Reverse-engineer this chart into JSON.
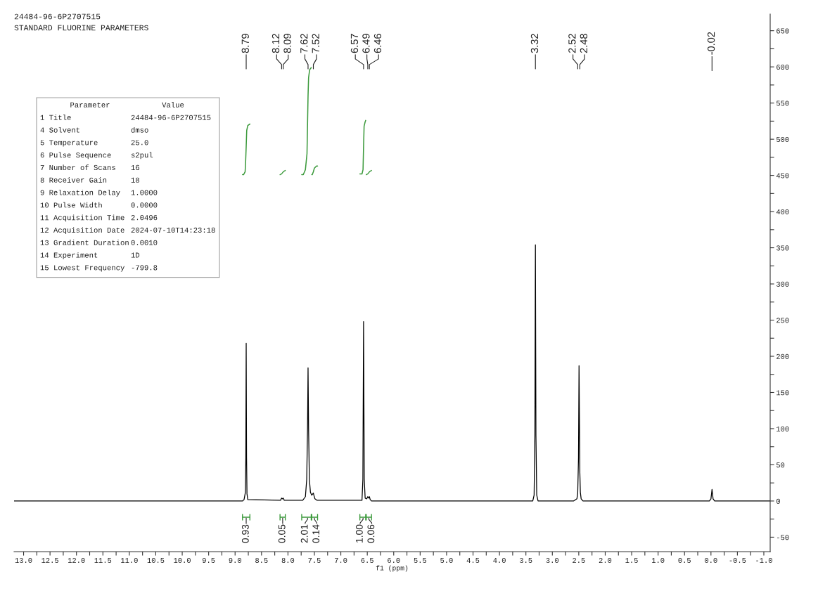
{
  "chart_data": {
    "type": "line",
    "title": "24484-96-6P2707515",
    "subtitle": "STANDARD FLUORINE PARAMETERS",
    "xlabel": "f1 (ppm)",
    "xlim": [
      13.18,
      -1.12
    ],
    "xticks": [
      {
        "value": 13,
        "label": "13.0"
      },
      12.5,
      {
        "value": 12,
        "label": "12.0"
      },
      11.5,
      {
        "value": 11,
        "label": "11.0"
      },
      10.5,
      {
        "value": 10,
        "label": "10.0"
      },
      9.5,
      {
        "value": 9,
        "label": "9.0"
      },
      8.5,
      {
        "value": 8,
        "label": "8.0"
      },
      7.5,
      {
        "value": 7,
        "label": "7.0"
      },
      6.5,
      {
        "value": 6,
        "label": "6.0"
      },
      5.5,
      {
        "value": 5,
        "label": "5.0"
      },
      4.5,
      {
        "value": 4,
        "label": "4.0"
      },
      3.5,
      {
        "value": 3,
        "label": "3.0"
      },
      2.5,
      {
        "value": 2,
        "label": "2.0"
      },
      1.5,
      {
        "value": 1,
        "label": "1.0"
      },
      0.5,
      {
        "value": 0,
        "label": "0.0"
      },
      -0.5,
      {
        "value": -1,
        "label": "-1.0"
      }
    ],
    "ylim": [
      -70,
      673
    ],
    "yticks": [
      -50,
      0,
      50,
      100,
      150,
      200,
      250,
      300,
      350,
      400,
      450,
      500,
      550,
      600,
      650
    ],
    "series": [
      {
        "color": "#000000",
        "x": [
          13.18,
          8.86,
          8.83,
          8.815,
          8.805,
          8.797,
          8.79,
          8.783,
          8.775,
          8.76,
          8.14,
          8.12,
          8.105,
          8.09,
          8.07,
          7.72,
          7.67,
          7.645,
          7.63,
          7.62,
          7.61,
          7.595,
          7.575,
          7.55,
          7.52,
          7.51,
          7.49,
          7.45,
          6.6,
          6.583,
          6.57,
          6.557,
          6.54,
          6.51,
          6.49,
          6.475,
          6.46,
          6.445,
          6.42,
          3.37,
          3.345,
          3.33,
          3.32,
          3.31,
          3.295,
          3.27,
          2.6,
          2.535,
          2.52,
          2.505,
          2.495,
          2.48,
          2.47,
          2.455,
          2.42,
          0.03,
          0.0,
          -0.02,
          -0.04,
          -0.07,
          -1.12
        ],
        "values": [
          0,
          0,
          2,
          8,
          12,
          60,
          218,
          60,
          10,
          2,
          1,
          4,
          3,
          4,
          1,
          1,
          6,
          30,
          100,
          184,
          100,
          30,
          12,
          8,
          11,
          8,
          3,
          1,
          1,
          30,
          248,
          30,
          4,
          3,
          6,
          4,
          6,
          2,
          0,
          0,
          8,
          90,
          354,
          90,
          8,
          0,
          0,
          3,
          11,
          60,
          187,
          40,
          12,
          3,
          0,
          0,
          3,
          16,
          3,
          0,
          0
        ]
      },
      {
        "color": "#3c9a3c",
        "x": [
          8.86,
          8.84,
          8.81,
          8.8,
          8.79,
          8.78,
          8.76,
          8.72,
          8.4,
          7.74,
          7.71,
          7.67,
          7.64,
          7.63,
          7.62,
          7.61,
          7.59,
          7.56,
          7.555,
          7.55,
          7.54,
          7.52,
          7.5,
          7.46,
          7.44,
          7.0,
          6.64,
          6.6,
          6.58,
          6.57,
          6.56,
          6.54,
          6.53
        ],
        "values": [
          451,
          451,
          455,
          470,
          490,
          512,
          519,
          521,
          null,
          451,
          451,
          458,
          480,
          520,
          560,
          585,
          596,
          599,
          null,
          451,
          451,
          455,
          460,
          463,
          463,
          null,
          452,
          452,
          458,
          490,
          518,
          524,
          526
        ]
      }
    ],
    "annotations": [
      {
        "text": "8.79",
        "x": 8.79
      },
      {
        "text": "8.12",
        "x": 8.12
      },
      {
        "text": "8.09",
        "x": 8.09
      },
      {
        "text": "7.62",
        "x": 7.62
      },
      {
        "text": "7.52",
        "x": 7.52
      },
      {
        "text": "6.57",
        "x": 6.57
      },
      {
        "text": "6.49",
        "x": 6.49
      },
      {
        "text": "6.46",
        "x": 6.46
      },
      {
        "text": "3.32",
        "x": 3.32
      },
      {
        "text": "2.52",
        "x": 2.52
      },
      {
        "text": "2.48",
        "x": 2.48
      },
      {
        "text": "-0.02",
        "x": -0.02
      },
      {
        "text": "0.93",
        "x": 8.79
      },
      {
        "text": "0.05",
        "x": 8.1
      },
      {
        "text": "2.01",
        "x": 7.63
      },
      {
        "text": "0.14",
        "x": 7.5
      },
      {
        "text": "1.00",
        "x": 6.58
      },
      {
        "text": "0.06",
        "x": 6.47
      },
      "Parameter",
      "Value",
      "1 Title",
      "24484-96-6P2707515",
      "4 Solvent",
      "dmso",
      "5 Temperature",
      "25.0",
      "6 Pulse Sequence",
      "s2pul",
      "7 Number of Scans",
      "16",
      "8 Receiver Gain",
      "18",
      "9 Relaxation Delay",
      "1.0000",
      "10 Pulse Width",
      "0.0000",
      "11 Acquisition Time",
      "2.0496",
      "12 Acquisition Date",
      "2024-07-10T14:23:18",
      "13 Gradient Duration",
      "0.0010",
      "14 Experiment",
      "1D",
      "15 Lowest Frequency",
      "-799.8"
    ]
  }
}
